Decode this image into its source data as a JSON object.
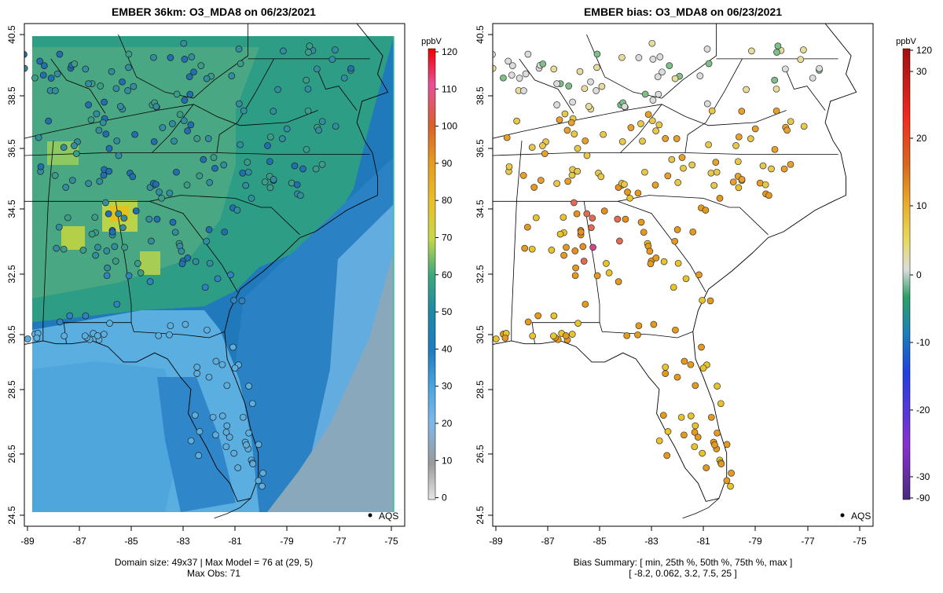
{
  "left_panel": {
    "title": "EMBER 36km: O3_MDA8 on 06/23/2021",
    "footer_line1": "Domain size: 49x37 | Max Model = 76 at (29, 5)",
    "footer_line2": "Max Obs: 71",
    "legend_marker": "AQS",
    "colorbar_unit": "ppbV",
    "colorbar_ticks": [
      "120",
      "110",
      "100",
      "90",
      "80",
      "70",
      "60",
      "50",
      "40",
      "30",
      "20",
      "10",
      "0"
    ]
  },
  "right_panel": {
    "title": "EMBER bias: O3_MDA8 on 06/23/2021",
    "footer_line1": "Bias Summary: [ min, 25th %, 50th %, 75th %, max ]",
    "footer_line2": "[ -8.2,   0.062,   3.2,   7.5,   25 ]",
    "legend_marker": "AQS",
    "colorbar_unit": "ppbV",
    "colorbar_ticks": [
      "120",
      "30",
      "20",
      "10",
      "0",
      "-10",
      "-20",
      "-30",
      "-90"
    ]
  },
  "axes": {
    "x_ticks": [
      "-89",
      "-87",
      "-85",
      "-83",
      "-81",
      "-79",
      "-77",
      "-75"
    ],
    "y_ticks": [
      "40.5",
      "38.5",
      "36.5",
      "34.5",
      "32.5",
      "30.5",
      "28.5",
      "26.5",
      "24.5"
    ],
    "lon_range": [
      -89.2,
      -74.9
    ],
    "lat_range": [
      24.3,
      40.9
    ]
  },
  "colors": {
    "grid_background": "#3a8fc8",
    "land_green": "#4aa890",
    "ocean_light": "#5aaee0",
    "far_ocean_gray": "#88a6b8",
    "point_orange": "#e59a1d",
    "point_yellow": "#e8d04a"
  }
}
